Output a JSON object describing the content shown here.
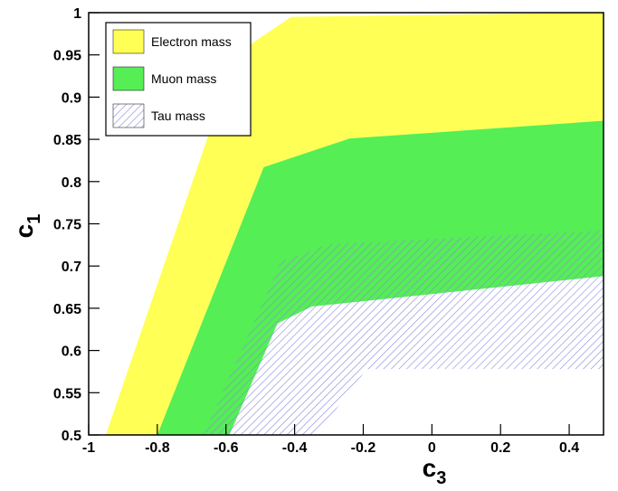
{
  "chart_data": {
    "type": "area",
    "xlabel": "c",
    "xlabel_sub": "3",
    "ylabel": "c",
    "ylabel_sub": "1",
    "xlim": [
      -1,
      0.5
    ],
    "ylim": [
      0.5,
      1
    ],
    "xticks": [
      -1,
      -0.8,
      -0.6,
      -0.4,
      -0.2,
      0,
      0.2,
      0.4
    ],
    "yticks": [
      0.5,
      0.55,
      0.6,
      0.65,
      0.7,
      0.75,
      0.8,
      0.85,
      0.9,
      0.95,
      1
    ],
    "legend": "top-left",
    "series": [
      {
        "name": "Electron mass",
        "color": "#ffff55",
        "hatch": false,
        "x": [
          -0.95,
          -0.57,
          -0.41,
          0.5,
          0.5,
          -0.24,
          -0.49,
          -0.8
        ],
        "y": [
          0.5,
          0.951,
          0.995,
          1,
          0.872,
          0.851,
          0.817,
          0.5
        ]
      },
      {
        "name": "Muon mass",
        "color": "#55ee55",
        "hatch": false,
        "x": [
          -0.8,
          -0.49,
          -0.24,
          0.5,
          0.5,
          -0.35,
          -0.45,
          -0.59
        ],
        "y": [
          0.5,
          0.817,
          0.851,
          0.872,
          0.688,
          0.652,
          0.632,
          0.5
        ]
      },
      {
        "name": "Tau mass",
        "color": "#8888dd",
        "hatch": true,
        "x": [
          -0.665,
          -0.44,
          -0.3,
          0.5,
          0.5,
          -0.19,
          -0.336
        ],
        "y": [
          0.5,
          0.705,
          0.726,
          0.742,
          0.578,
          0.578,
          0.5
        ]
      }
    ]
  }
}
